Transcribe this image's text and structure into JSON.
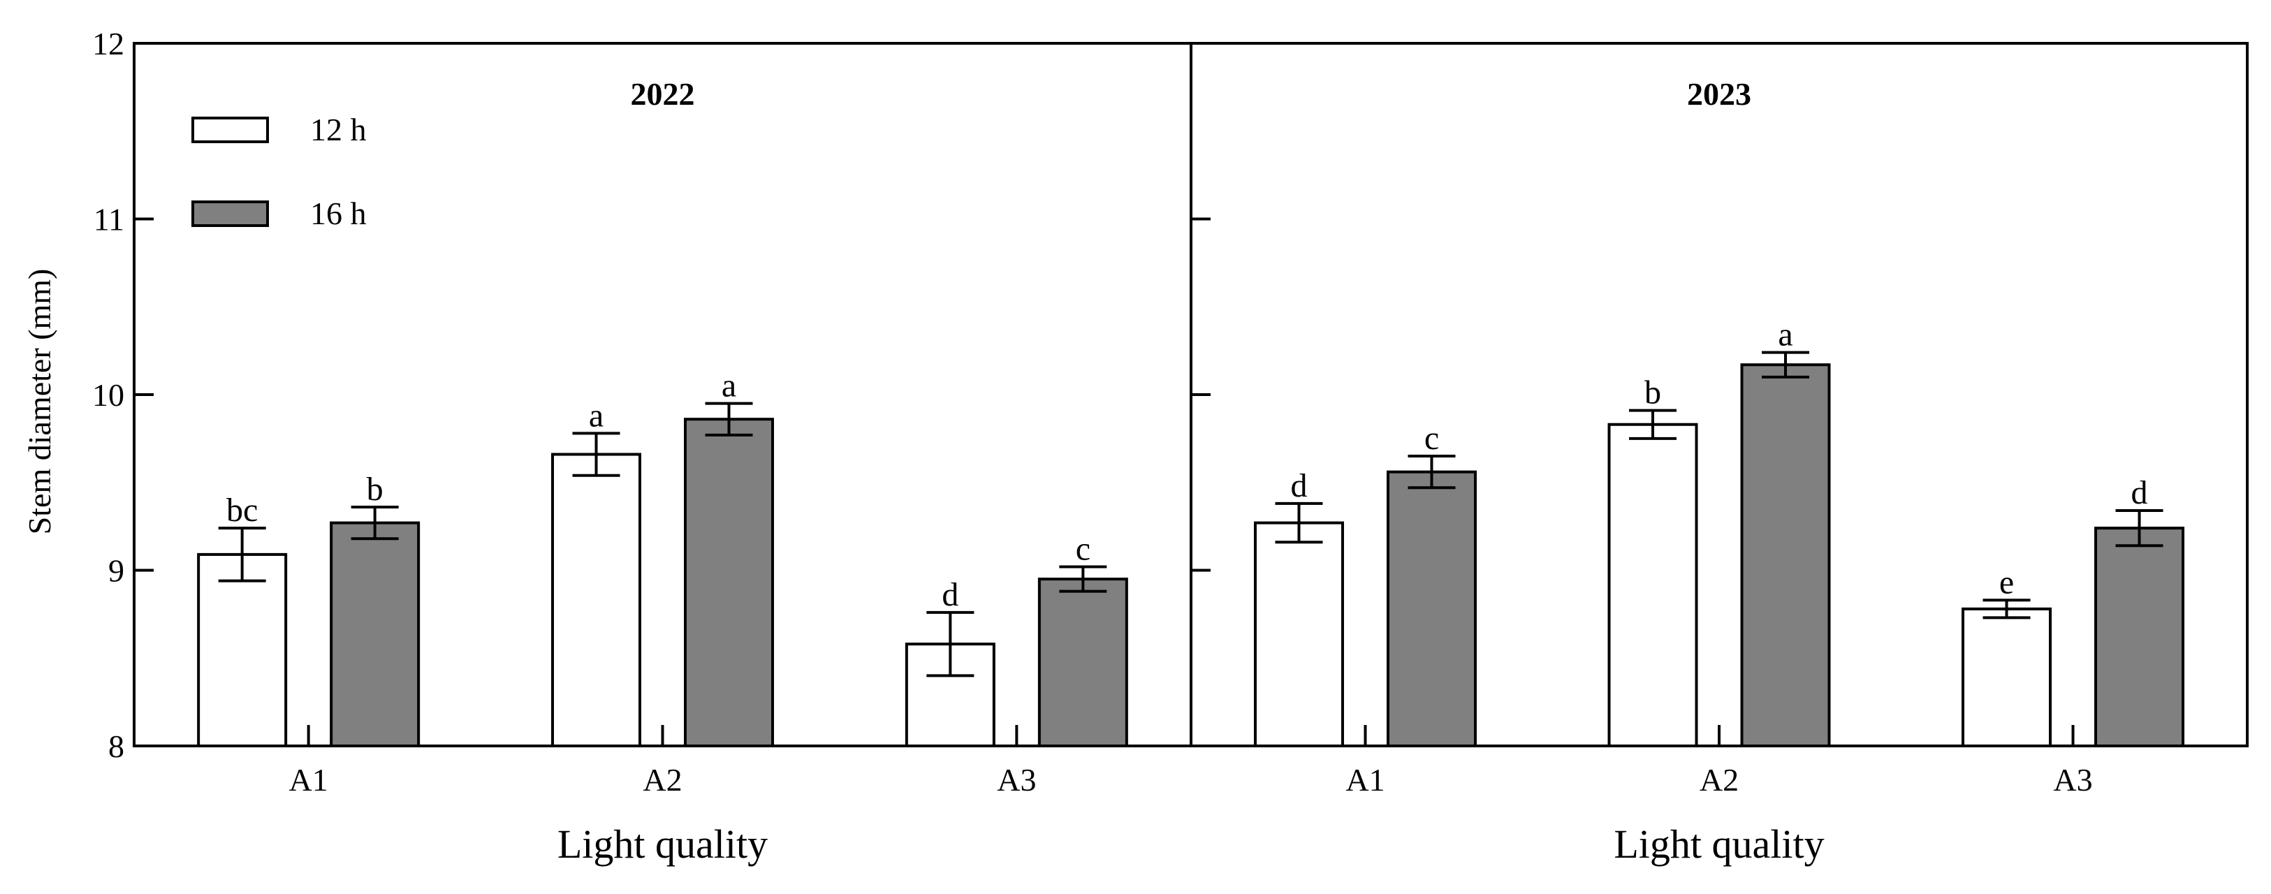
{
  "chart_data": [
    {
      "type": "bar",
      "title": "2022",
      "xlabel": "Light quality",
      "ylabel": "Stem diameter (mm)",
      "ylim": [
        8,
        12
      ],
      "yticks": [
        "8",
        "9",
        "10",
        "11",
        "12"
      ],
      "categories": [
        "A1",
        "A2",
        "A3"
      ],
      "series": [
        {
          "name": "12 h",
          "color": "#ffffff",
          "values": [
            9.09,
            9.66,
            8.58
          ],
          "errors": [
            0.15,
            0.12,
            0.18
          ],
          "letters": [
            "bc",
            "a",
            "d"
          ]
        },
        {
          "name": "16 h",
          "color": "#808080",
          "values": [
            9.27,
            9.86,
            8.95
          ],
          "errors": [
            0.09,
            0.09,
            0.07
          ],
          "letters": [
            "b",
            "a",
            "c"
          ]
        }
      ]
    },
    {
      "type": "bar",
      "title": "2023",
      "xlabel": "Light quality",
      "ylim": [
        8,
        12
      ],
      "categories": [
        "A1",
        "A2",
        "A3"
      ],
      "series": [
        {
          "name": "12 h",
          "color": "#ffffff",
          "values": [
            9.27,
            9.83,
            8.78
          ],
          "errors": [
            0.11,
            0.08,
            0.05
          ],
          "letters": [
            "d",
            "b",
            "e"
          ]
        },
        {
          "name": "16 h",
          "color": "#808080",
          "values": [
            9.56,
            10.17,
            9.24
          ],
          "errors": [
            0.09,
            0.07,
            0.1
          ],
          "letters": [
            "c",
            "a",
            "d"
          ]
        }
      ]
    }
  ],
  "legend": [
    {
      "label": "12 h",
      "color": "#ffffff"
    },
    {
      "label": "16 h",
      "color": "#808080"
    }
  ]
}
